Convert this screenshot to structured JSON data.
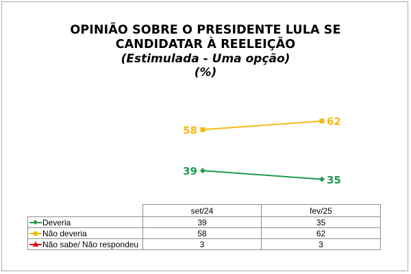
{
  "chart_data": {
    "type": "line",
    "title": "OPINIÃO SOBRE O PRESIDENTE LULA SE CANDIDATAR À REELEIÇÃO",
    "title_lines": [
      "OPINIÃO SOBRE O PRESIDENTE LULA SE",
      "CANDIDATAR À REELEIÇÃO"
    ],
    "subtitle": "(Estimulada - Uma opção)",
    "unit_note": "(%)",
    "categories": [
      "set/24",
      "fev/25"
    ],
    "ylim": [
      0,
      100
    ],
    "grid": false,
    "legend_placement": "data-table",
    "series": [
      {
        "name": "Deveria",
        "values": [
          39,
          35
        ],
        "color": "#1e9a4c",
        "marker": "diamond",
        "labels_visible": true
      },
      {
        "name": "Não deveria",
        "values": [
          58,
          62
        ],
        "color": "#f2bb13",
        "marker": "square",
        "labels_visible": true
      },
      {
        "name": "Não sabe/ Não respondeu",
        "values": [
          3,
          3
        ],
        "color": "#e8000b",
        "marker": "triangle",
        "labels_visible": false
      }
    ],
    "table": {
      "header": [
        "set/24",
        "fev/25"
      ],
      "rows": [
        {
          "label": "Deveria",
          "values": [
            "39",
            "35"
          ]
        },
        {
          "label": "Não deveria",
          "values": [
            "58",
            "62"
          ]
        },
        {
          "label": "Não sabe/ Não respondeu",
          "values": [
            "3",
            "3"
          ]
        }
      ]
    }
  }
}
